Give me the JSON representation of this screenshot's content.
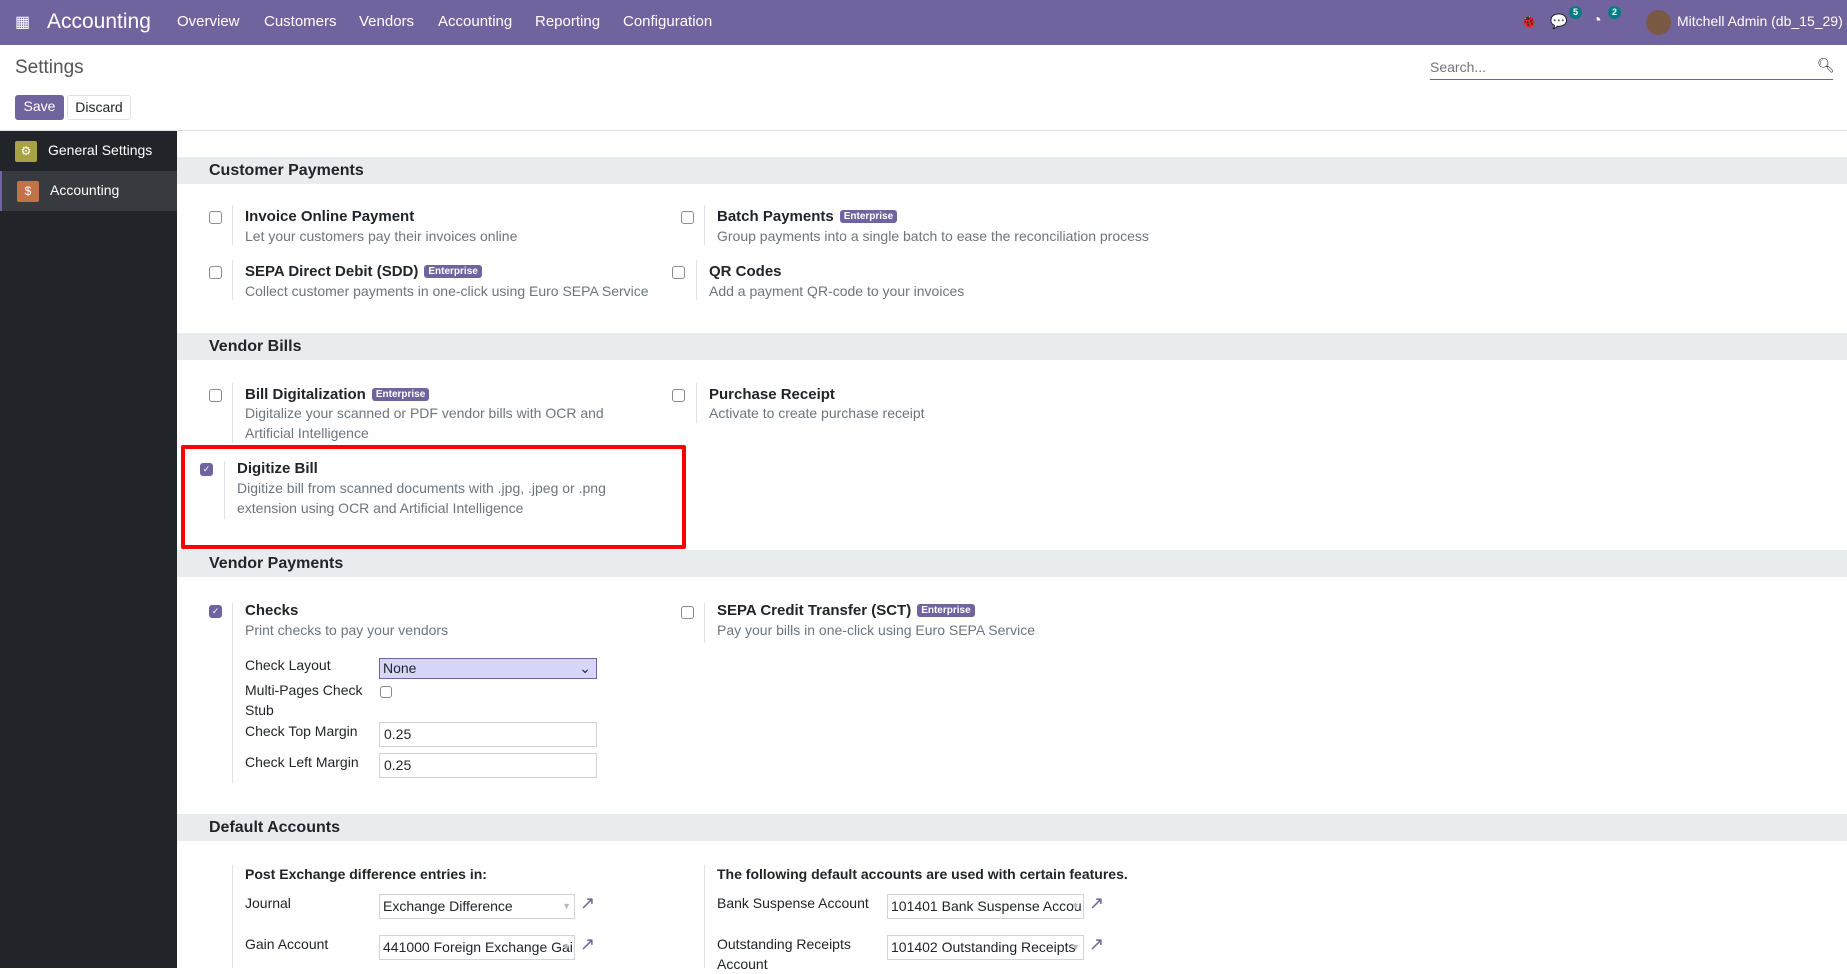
{
  "navbar": {
    "app_name": "Accounting",
    "menu": [
      "Overview",
      "Customers",
      "Vendors",
      "Accounting",
      "Reporting",
      "Configuration"
    ],
    "messages_count": "5",
    "activities_count": "2",
    "user": "Mitchell Admin (db_15_29)"
  },
  "control": {
    "title": "Settings",
    "save": "Save",
    "discard": "Discard",
    "search_placeholder": "Search..."
  },
  "sidebar": {
    "items": [
      {
        "label": "General Settings"
      },
      {
        "label": "Accounting"
      }
    ]
  },
  "enterprise_label": "Enterprise",
  "sections": {
    "customer_payments": {
      "title": "Customer Payments",
      "invoice_online": {
        "title": "Invoice Online Payment",
        "desc": "Let your customers pay their invoices online"
      },
      "batch": {
        "title": "Batch Payments",
        "desc": "Group payments into a single batch to ease the reconciliation process"
      },
      "sdd": {
        "title": "SEPA Direct Debit (SDD)",
        "desc": "Collect customer payments in one-click using Euro SEPA Service"
      },
      "qr": {
        "title": "QR Codes",
        "desc": "Add a payment QR-code to your invoices"
      }
    },
    "vendor_bills": {
      "title": "Vendor Bills",
      "bill_digit": {
        "title": "Bill Digitalization",
        "desc": "Digitalize your scanned or PDF vendor bills with OCR and Artificial Intelligence"
      },
      "purchase_receipt": {
        "title": "Purchase Receipt",
        "desc": "Activate to create purchase receipt"
      },
      "digitize_bill": {
        "title": "Digitize Bill",
        "desc": "Digitize bill from scanned documents with .jpg, .jpeg or .png extension using OCR and Artificial Intelligence"
      }
    },
    "vendor_payments": {
      "title": "Vendor Payments",
      "checks": {
        "title": "Checks",
        "desc": "Print checks to pay your vendors",
        "layout_label": "Check Layout",
        "layout_value": "None",
        "multi_label": "Multi-Pages Check Stub",
        "top_label": "Check Top Margin",
        "top_value": "0.25",
        "left_label": "Check Left Margin",
        "left_value": "0.25"
      },
      "sct": {
        "title": "SEPA Credit Transfer (SCT)",
        "desc": "Pay your bills in one-click using Euro SEPA Service"
      }
    },
    "default_accounts": {
      "title": "Default Accounts",
      "left_heading": "Post Exchange difference entries in:",
      "journal_label": "Journal",
      "journal_value": "Exchange Difference",
      "gain_label": "Gain Account",
      "gain_value": "441000 Foreign Exchange Gai",
      "right_heading": "The following default accounts are used with certain features.",
      "bank_label": "Bank Suspense Account",
      "bank_value": "101401 Bank Suspense Accou",
      "outstanding_label": "Outstanding Receipts Account",
      "outstanding_value": "101402 Outstanding Receipts"
    }
  }
}
